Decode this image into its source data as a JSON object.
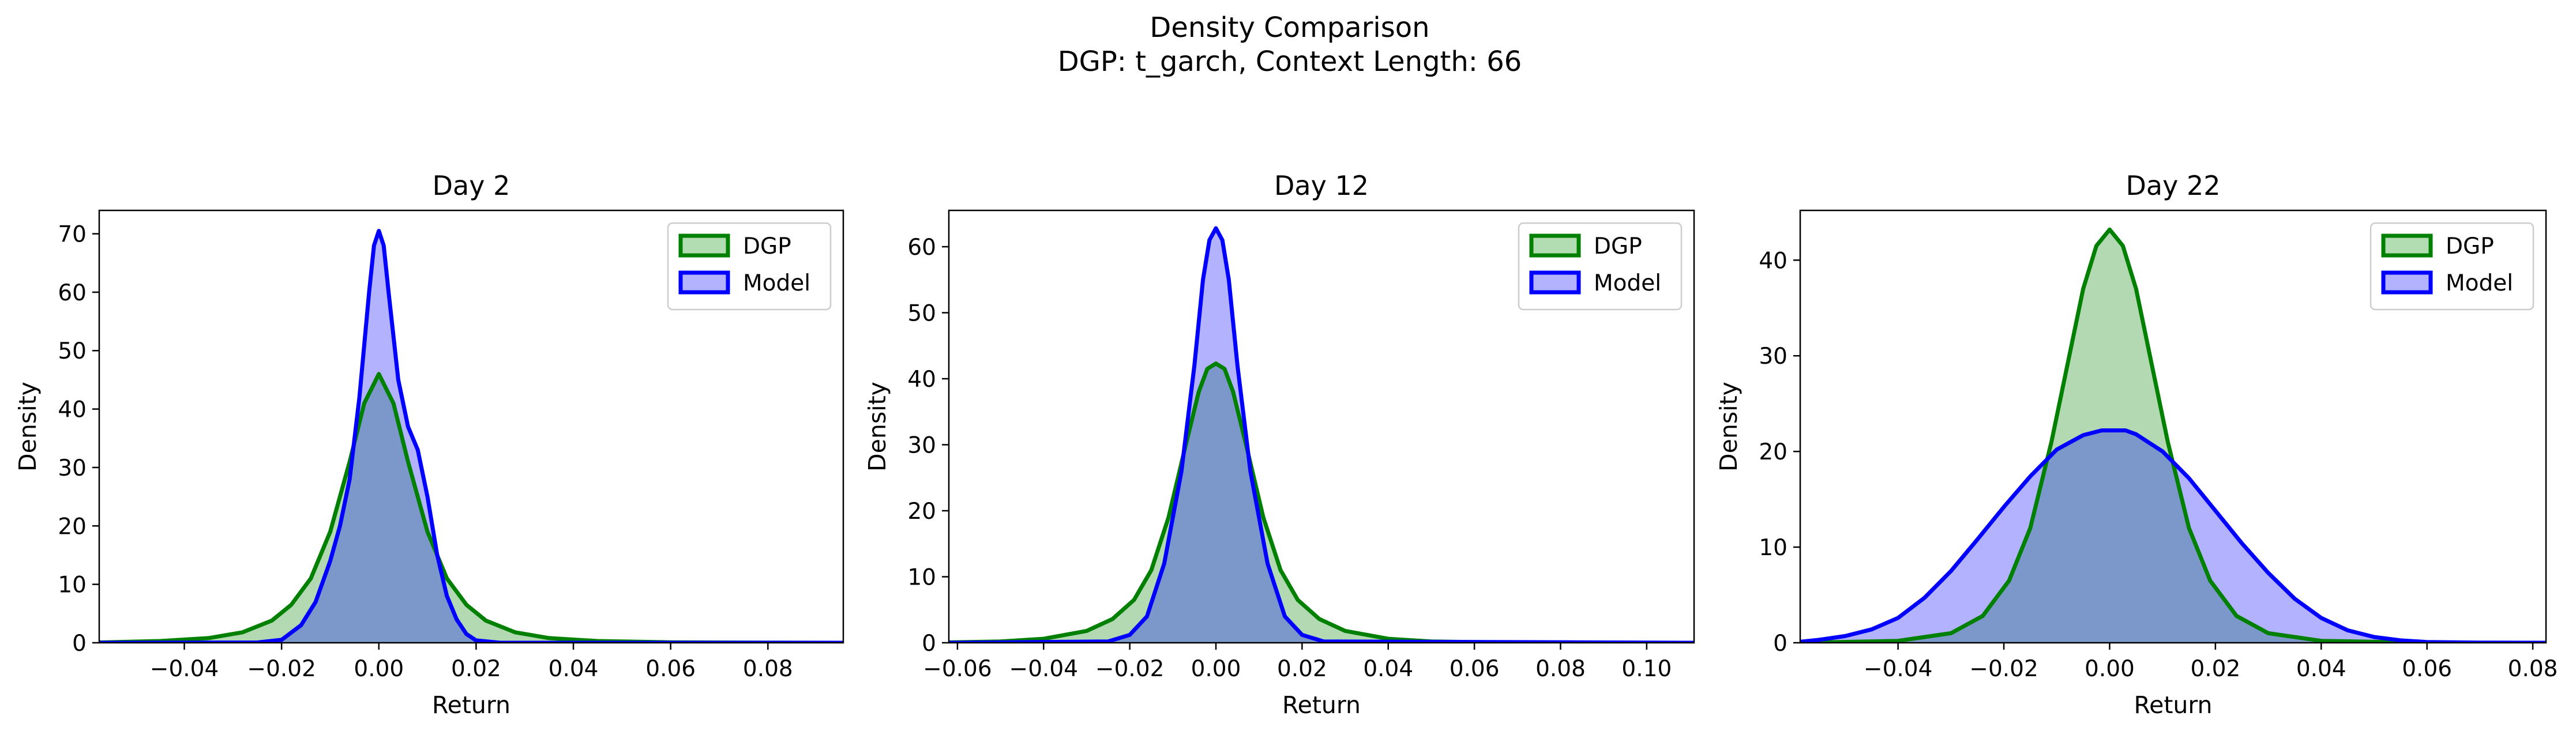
{
  "figure": {
    "title_line1": "Density Comparison",
    "title_line2": "DGP: t_garch, Context Length: 66"
  },
  "colors": {
    "dgp_line": "#008000",
    "dgp_fill": "#b2dcb2",
    "model_line": "#0000ff",
    "model_fill": "#b2b2ff",
    "overlap_fill": "#7f98c8"
  },
  "chart_data": [
    {
      "type": "area",
      "title": "Day 2",
      "xlabel": "Return",
      "ylabel": "Density",
      "xlim": [
        -0.0575,
        0.0955
      ],
      "ylim": [
        0,
        74
      ],
      "xticks": [
        -0.04,
        -0.02,
        0.0,
        0.02,
        0.04,
        0.06,
        0.08
      ],
      "xtick_labels": [
        "−0.04",
        "−0.02",
        "0.00",
        "0.02",
        "0.04",
        "0.06",
        "0.08"
      ],
      "yticks": [
        0,
        10,
        20,
        30,
        40,
        50,
        60,
        70
      ],
      "legend_position": "top-right",
      "series": [
        {
          "name": "DGP",
          "x": [
            -0.0575,
            -0.045,
            -0.035,
            -0.028,
            -0.022,
            -0.018,
            -0.014,
            -0.01,
            -0.006,
            -0.003,
            0,
            0.003,
            0.006,
            0.01,
            0.014,
            0.018,
            0.022,
            0.028,
            0.035,
            0.045,
            0.06,
            0.08,
            0.0955
          ],
          "y": [
            0.05,
            0.3,
            0.8,
            1.8,
            3.8,
            6.5,
            11,
            19,
            31,
            41,
            46,
            41,
            31,
            19,
            11,
            6.5,
            3.8,
            1.8,
            0.8,
            0.3,
            0.08,
            0.02,
            0
          ]
        },
        {
          "name": "Model",
          "x": [
            -0.0575,
            -0.025,
            -0.02,
            -0.016,
            -0.013,
            -0.01,
            -0.008,
            -0.006,
            -0.004,
            -0.002,
            -0.001,
            0,
            0.001,
            0.002,
            0.004,
            0.006,
            0.008,
            0.01,
            0.012,
            0.014,
            0.016,
            0.018,
            0.02,
            0.025,
            0.0955
          ],
          "y": [
            0,
            0.05,
            0.5,
            3,
            7,
            14,
            20,
            28,
            42,
            60,
            68,
            70.5,
            68,
            60,
            45,
            37,
            33,
            25,
            15,
            8,
            4,
            1.5,
            0.4,
            0,
            0
          ]
        }
      ]
    },
    {
      "type": "area",
      "title": "Day 12",
      "xlabel": "Return",
      "ylabel": "Density",
      "xlim": [
        -0.062,
        0.111
      ],
      "ylim": [
        0,
        65.5
      ],
      "xticks": [
        -0.06,
        -0.04,
        -0.02,
        0.0,
        0.02,
        0.04,
        0.06,
        0.08,
        0.1
      ],
      "xtick_labels": [
        "−0.06",
        "−0.04",
        "−0.02",
        "0.00",
        "0.02",
        "0.04",
        "0.06",
        "0.08",
        "0.10"
      ],
      "yticks": [
        0,
        10,
        20,
        30,
        40,
        50,
        60
      ],
      "legend_position": "top-right",
      "series": [
        {
          "name": "DGP",
          "x": [
            -0.062,
            -0.05,
            -0.04,
            -0.03,
            -0.024,
            -0.019,
            -0.015,
            -0.011,
            -0.007,
            -0.004,
            -0.002,
            0,
            0.002,
            0.004,
            0.007,
            0.011,
            0.015,
            0.019,
            0.024,
            0.03,
            0.04,
            0.05,
            0.06,
            0.08,
            0.111
          ],
          "y": [
            0.05,
            0.2,
            0.6,
            1.8,
            3.6,
            6.5,
            11,
            19,
            30,
            38,
            41.5,
            42.3,
            41.5,
            38,
            30,
            19,
            11,
            6.5,
            3.6,
            1.8,
            0.6,
            0.2,
            0.1,
            0.02,
            0
          ]
        },
        {
          "name": "Model",
          "x": [
            -0.062,
            -0.025,
            -0.02,
            -0.016,
            -0.012,
            -0.008,
            -0.005,
            -0.003,
            -0.0015,
            0,
            0.0015,
            0.003,
            0.005,
            0.008,
            0.012,
            0.016,
            0.02,
            0.025,
            0.111
          ],
          "y": [
            0,
            0.2,
            1.2,
            4,
            12,
            26,
            42,
            55,
            61,
            62.8,
            61,
            55,
            42,
            26,
            12,
            4,
            1.2,
            0.2,
            0
          ]
        }
      ]
    },
    {
      "type": "area",
      "title": "Day 22",
      "xlabel": "Return",
      "ylabel": "Density",
      "xlim": [
        -0.0585,
        0.0825
      ],
      "ylim": [
        0,
        45.2
      ],
      "xticks": [
        -0.04,
        -0.02,
        0.0,
        0.02,
        0.04,
        0.06,
        0.08
      ],
      "xtick_labels": [
        "−0.04",
        "−0.02",
        "0.00",
        "0.02",
        "0.04",
        "0.06",
        "0.08"
      ],
      "yticks": [
        0,
        10,
        20,
        30,
        40
      ],
      "legend_position": "top-right",
      "series": [
        {
          "name": "DGP",
          "x": [
            -0.0585,
            -0.04,
            -0.03,
            -0.024,
            -0.019,
            -0.015,
            -0.011,
            -0.008,
            -0.005,
            -0.0025,
            0,
            0.0025,
            0.005,
            0.008,
            0.011,
            0.015,
            0.019,
            0.024,
            0.03,
            0.04,
            0.06,
            0.0825
          ],
          "y": [
            0,
            0.2,
            1,
            2.8,
            6.5,
            12,
            21,
            29,
            37,
            41.5,
            43.2,
            41.5,
            37,
            29,
            21,
            12,
            6.5,
            2.8,
            1,
            0.2,
            0,
            0
          ],
          "_": 0
        },
        {
          "name": "Model",
          "x": [
            -0.0585,
            -0.055,
            -0.05,
            -0.045,
            -0.04,
            -0.035,
            -0.03,
            -0.025,
            -0.02,
            -0.015,
            -0.01,
            -0.005,
            -0.0015,
            0,
            0.003,
            0.005,
            0.01,
            0.015,
            0.02,
            0.025,
            0.03,
            0.035,
            0.04,
            0.045,
            0.05,
            0.055,
            0.06,
            0.07,
            0.0825
          ],
          "y": [
            0.1,
            0.3,
            0.7,
            1.4,
            2.6,
            4.7,
            7.5,
            10.8,
            14.2,
            17.4,
            20.2,
            21.7,
            22.2,
            22.2,
            22.2,
            21.8,
            20,
            17.2,
            13.8,
            10.4,
            7.3,
            4.6,
            2.6,
            1.3,
            0.6,
            0.25,
            0.08,
            0.02,
            0
          ]
        }
      ]
    }
  ]
}
